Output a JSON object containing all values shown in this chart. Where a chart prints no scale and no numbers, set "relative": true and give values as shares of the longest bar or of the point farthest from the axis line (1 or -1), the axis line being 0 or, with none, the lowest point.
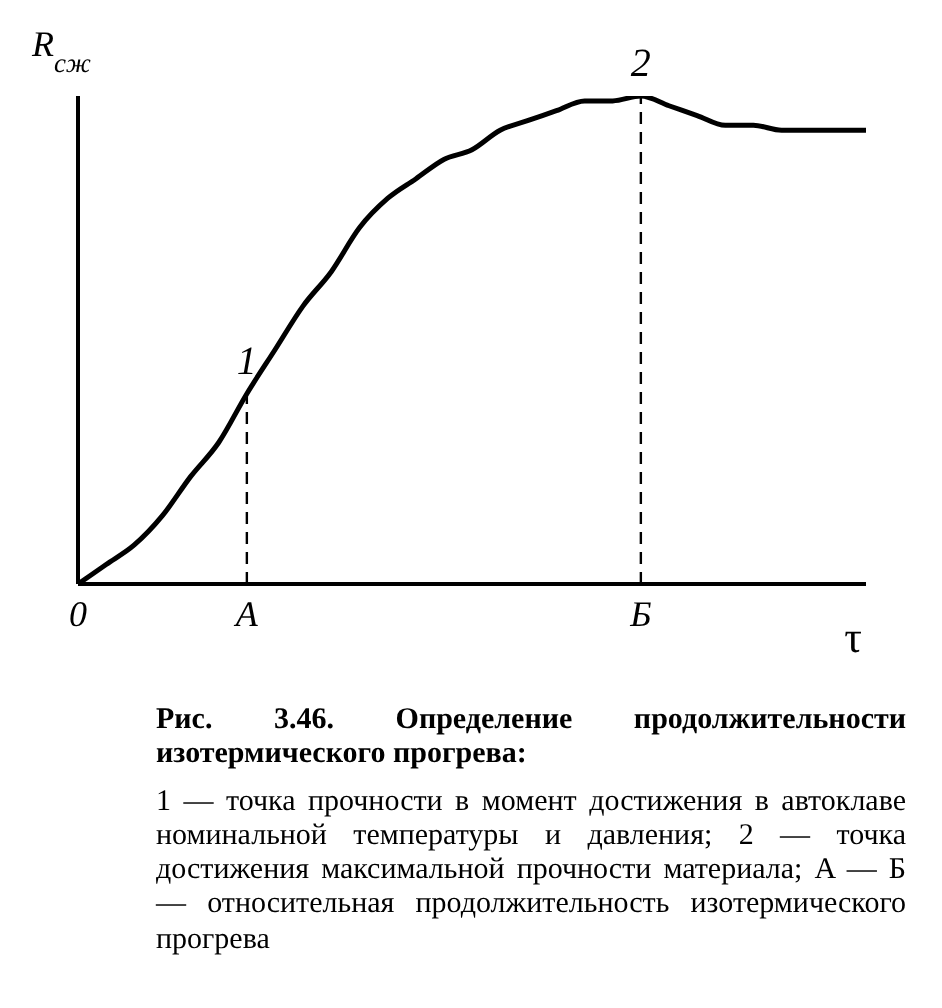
{
  "chart_data": {
    "type": "line",
    "relative": true,
    "title": "Рис. 3.46. Определение продолжительности изотермического прогрева:",
    "ylabel": "R$_{сж}$",
    "xlabel": "τ",
    "categories": [
      "0",
      null,
      null,
      null,
      null,
      null,
      "A",
      null,
      null,
      null,
      null,
      null,
      null,
      null,
      null,
      null,
      null,
      null,
      null,
      null,
      "Б",
      null,
      null,
      null,
      null,
      null,
      null,
      null,
      null
    ],
    "series": [
      {
        "color": "#000000",
        "values": [
          0,
          0.04,
          0.08,
          0.14,
          0.22,
          0.29,
          0.39,
          0.48,
          0.57,
          0.64,
          0.73,
          0.79,
          0.83,
          0.87,
          0.89,
          0.93,
          0.95,
          0.97,
          0.99,
          0.99,
          1,
          0.98,
          0.96,
          0.94,
          0.94,
          0.93,
          0.93,
          0.93,
          0.93
        ]
      }
    ],
    "ref_lines": [
      {
        "axis": "x",
        "value": "A",
        "line_style": "dashed"
      },
      {
        "axis": "x",
        "value": "Б",
        "line_style": "dashed"
      }
    ],
    "annotations": [
      {
        "text": "1",
        "x": "A",
        "y": 0.39
      },
      {
        "text": "2",
        "x": "Б",
        "y": 1
      },
      "1 — точка прочности в момент достижения в автоклаве номинальной температуры и давления; 2 — точка достижения максимальной прочности материала; A — Б — относительная продолжительность изотермического прогрева"
    ],
    "grid": false,
    "legend": false
  }
}
